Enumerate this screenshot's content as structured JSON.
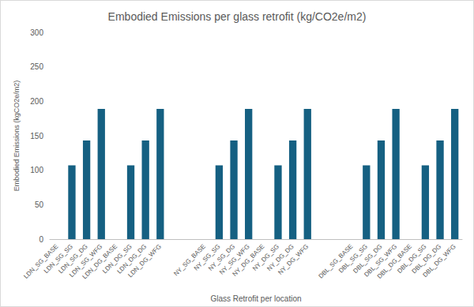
{
  "chart_data": {
    "type": "bar",
    "title": "Embodied Emissions per glass retrofit (kg/CO2e/m2)",
    "x_label": "Glass Retrofit per location",
    "y_label": "Embodied Emissions (kgCO2e/m2)",
    "categories": [
      "LDN_SG_BASE",
      "LDN_SG_SG",
      "LDN_SG_DG",
      "LDN_SG_WFG",
      "LDN_DG_BASE",
      "LDN_DG_SG",
      "LDN_DG_DG",
      "LDN_DG_WFG",
      null,
      null,
      "NY_SG_BASE",
      "NY_SG_SG",
      "NY_SG_DG",
      "NY_SG_WFG",
      "NY_DG_BASE",
      "NY_DG_SG",
      "NY_DG_DG",
      "NY_DG_WFG",
      null,
      null,
      "DBL_SG_BASE",
      "DBL_SG_SG",
      "DBL_SG_DG",
      "DBL_SG_WFG",
      "DBL_DG_BASE",
      "DBL_DG_SG",
      "DBL_DG_DG",
      "DBL_DG_WFG"
    ],
    "values": [
      null,
      107,
      143,
      189,
      null,
      107,
      143,
      189,
      null,
      null,
      null,
      107,
      143,
      189,
      null,
      107,
      143,
      189,
      null,
      null,
      null,
      107,
      143,
      189,
      null,
      107,
      143,
      189
    ],
    "color": "#156082",
    "ylim": [
      0,
      300
    ],
    "yticks": [
      0,
      50,
      100,
      150,
      200,
      250,
      300
    ],
    "grid": false
  }
}
